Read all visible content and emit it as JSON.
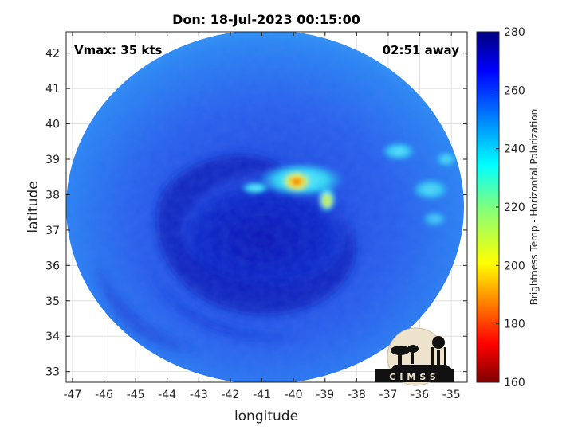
{
  "chart_data": {
    "type": "heatmap",
    "title": "Don: 18-Jul-2023 00:15:00",
    "xlabel": "longitude",
    "ylabel": "latitude",
    "xlim": [
      -47.2,
      -34.5
    ],
    "ylim": [
      32.7,
      42.6
    ],
    "xticks": [
      "-47",
      "-46",
      "-45",
      "-44",
      "-43",
      "-42",
      "-41",
      "-40",
      "-39",
      "-38",
      "-37",
      "-36",
      "-35"
    ],
    "xtick_values": [
      -47,
      -46,
      -45,
      -44,
      -43,
      -42,
      -41,
      -40,
      -39,
      -38,
      -37,
      -36,
      -35
    ],
    "yticks": [
      "33",
      "34",
      "35",
      "36",
      "37",
      "38",
      "39",
      "40",
      "41",
      "42"
    ],
    "ytick_values": [
      33,
      34,
      35,
      36,
      37,
      38,
      39,
      40,
      41,
      42
    ],
    "grid": true,
    "swath_center": [
      -40.9,
      37.65
    ],
    "swath_radius_deg": [
      6.3,
      5.0
    ],
    "annotations": {
      "vmax": "Vmax: 35 kts",
      "time_offset": "02:51 away"
    },
    "colorbar": {
      "label": "Brightness Temp - Horizontal Polarization",
      "min": 160,
      "max": 280,
      "ticks": [
        "160",
        "180",
        "200",
        "220",
        "240",
        "260",
        "280"
      ],
      "tick_values": [
        160,
        180,
        200,
        220,
        240,
        260,
        280
      ],
      "colormap": "jet"
    },
    "features": [
      {
        "name": "warm core",
        "lon": -39.9,
        "lat": 38.45,
        "value": 185
      },
      {
        "name": "warm band",
        "lon": -39.2,
        "lat": 38.1,
        "value": 225
      },
      {
        "name": "eastern cloud patches",
        "lon": -36.5,
        "lat": 38.4,
        "value": 240
      },
      {
        "name": "cold spiral",
        "lon": -41.3,
        "lat": 36.6,
        "value": 262
      }
    ]
  },
  "logo": {
    "text": "CIMSS",
    "colors": {
      "circle": "#ede3cc",
      "ink": "#111111"
    }
  },
  "colors": {
    "background_field": "#2f6ff0",
    "cold_spiral": "#0c1fc0",
    "edge": "#2a8cf4"
  }
}
